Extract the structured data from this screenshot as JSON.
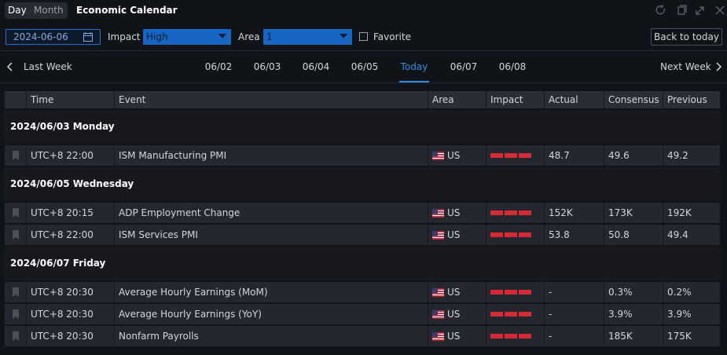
{
  "header": {
    "tabs": [
      "Day",
      "Month"
    ],
    "title": "Economic Calendar"
  },
  "filters": {
    "date": "2024-06-06",
    "impact_label": "Impact",
    "impact": "High",
    "area_label": "Area",
    "area": "1",
    "favorite": "Favorite",
    "back": "Back to today"
  },
  "week_nav": {
    "prev": "Last Week",
    "next": "Next Week",
    "days": [
      "06/02",
      "06/03",
      "06/04",
      "06/05",
      "Today",
      "06/07",
      "06/08"
    ]
  },
  "table": {
    "columns": [
      "Time",
      "Event",
      "Area",
      "Impact",
      "Actual",
      "Consensus",
      "Previous"
    ],
    "groups": [
      {
        "date": "2024/06/03 Monday",
        "rows": [
          {
            "time": "UTC+8 22:00",
            "event": "ISM Manufacturing PMI",
            "area": "US",
            "actual": "48.7",
            "consensus": "49.6",
            "previous": "49.2"
          }
        ]
      },
      {
        "date": "2024/06/05 Wednesday",
        "rows": [
          {
            "time": "UTC+8 20:15",
            "event": "ADP Employment Change",
            "area": "US",
            "actual": "152K",
            "consensus": "173K",
            "previous": "192K"
          },
          {
            "time": "UTC+8 22:00",
            "event": "ISM Services PMI",
            "area": "US",
            "actual": "53.8",
            "consensus": "50.8",
            "previous": "49.4"
          }
        ]
      },
      {
        "date": "2024/06/07 Friday",
        "rows": [
          {
            "time": "UTC+8 20:30",
            "event": "Average Hourly Earnings (MoM)",
            "area": "US",
            "actual": "-",
            "consensus": "0.3%",
            "previous": "0.2%"
          },
          {
            "time": "UTC+8 20:30",
            "event": "Average Hourly Earnings (YoY)",
            "area": "US",
            "actual": "-",
            "consensus": "3.9%",
            "previous": "3.9%"
          },
          {
            "time": "UTC+8 20:30",
            "event": "Nonfarm Payrolls",
            "area": "US",
            "actual": "-",
            "consensus": "185K",
            "previous": "175K"
          }
        ]
      }
    ]
  }
}
